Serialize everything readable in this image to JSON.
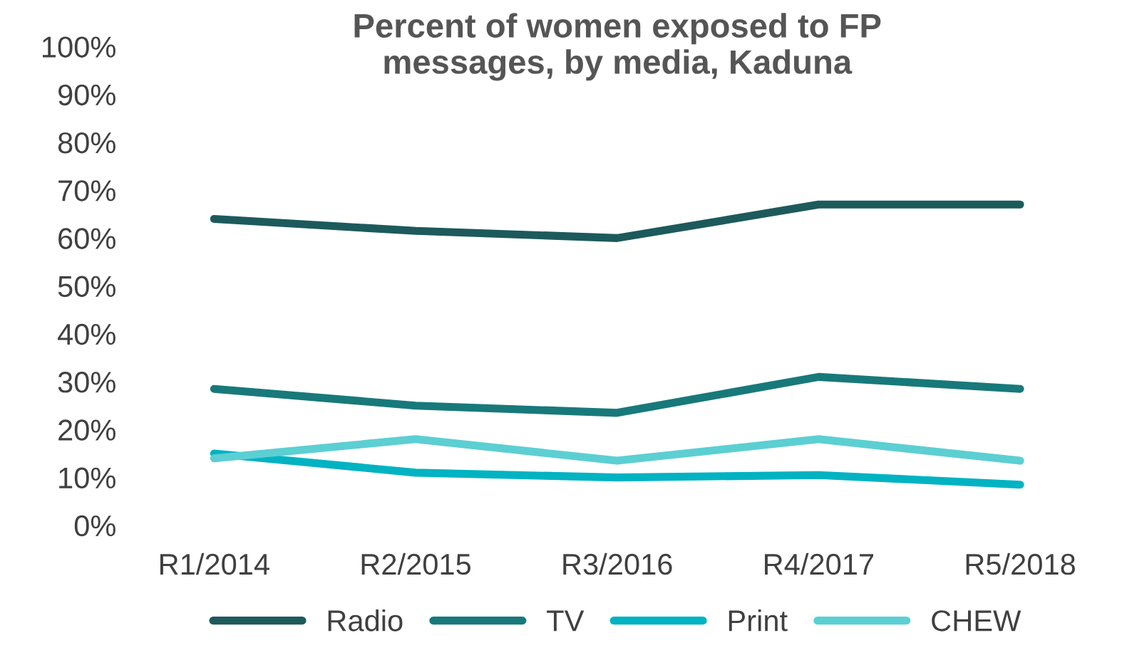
{
  "chart_data": {
    "type": "line",
    "title": "Percent of women exposed to FP\nmessages, by media, Kaduna",
    "categories": [
      "R1/2014",
      "R2/2015",
      "R3/2016",
      "R4/2017",
      "R5/2018"
    ],
    "series": [
      {
        "name": "Radio",
        "color": "#1d5a5c",
        "values": [
          64,
          61.5,
          60,
          67,
          67
        ]
      },
      {
        "name": "TV",
        "color": "#18797a",
        "values": [
          28.5,
          25,
          23.5,
          31,
          28.5
        ]
      },
      {
        "name": "Print",
        "color": "#00b3c2",
        "values": [
          15,
          11,
          10,
          10.5,
          8.5
        ]
      },
      {
        "name": "CHEW",
        "color": "#5ccfd3",
        "values": [
          14,
          18,
          13.5,
          18,
          13.5
        ]
      }
    ],
    "ylim": [
      0,
      100
    ],
    "yticks": [
      {
        "value": 0,
        "label": "0%"
      },
      {
        "value": 10,
        "label": "10%"
      },
      {
        "value": 20,
        "label": "20%"
      },
      {
        "value": 30,
        "label": "30%"
      },
      {
        "value": 40,
        "label": "40%"
      },
      {
        "value": 50,
        "label": "50%"
      },
      {
        "value": 60,
        "label": "60%"
      },
      {
        "value": 70,
        "label": "70%"
      },
      {
        "value": 80,
        "label": "80%"
      },
      {
        "value": 90,
        "label": "90%"
      },
      {
        "value": 100,
        "label": "100%"
      }
    ],
    "grid": false,
    "legend": "bottom",
    "marker": "none",
    "line_style": "solid"
  }
}
